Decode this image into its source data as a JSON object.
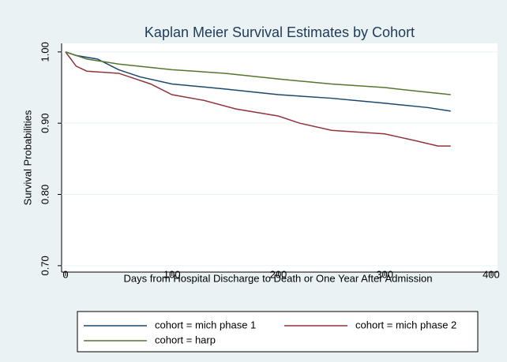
{
  "chart_data": {
    "type": "line",
    "title": "Kaplan Meier Survival Estimates by Cohort",
    "x_label": "Days from Hospital Discharge to Death or One Year After Admission",
    "y_label": "Survival Probabilities",
    "xlim": [
      -3.7,
      406
    ],
    "xticks": [
      0,
      100,
      200,
      300,
      400
    ],
    "ylim": [
      0.691,
      1.012
    ],
    "yticks": [
      {
        "value": 0.7,
        "label": "0.70"
      },
      {
        "value": 0.8,
        "label": "0.80"
      },
      {
        "value": 0.9,
        "label": "0.90"
      },
      {
        "value": 1,
        "label": "1.00"
      }
    ],
    "grid": true,
    "series": [
      {
        "name": "cohort = mich phase 1",
        "color": "#1a476f",
        "x": [
          0,
          10,
          30,
          50,
          70,
          100,
          150,
          200,
          250,
          300,
          340,
          362
        ],
        "values": [
          1.0,
          0.995,
          0.99,
          0.975,
          0.965,
          0.955,
          0.948,
          0.94,
          0.935,
          0.928,
          0.922,
          0.917
        ]
      },
      {
        "name": "cohort = mich phase 2",
        "color": "#90353b",
        "x": [
          0,
          5,
          10,
          20,
          50,
          60,
          80,
          100,
          130,
          160,
          200,
          220,
          250,
          300,
          330,
          350,
          362
        ],
        "values": [
          1.0,
          0.99,
          0.98,
          0.973,
          0.97,
          0.965,
          0.955,
          0.94,
          0.932,
          0.92,
          0.91,
          0.9,
          0.89,
          0.885,
          0.875,
          0.868,
          0.868
        ]
      },
      {
        "name": "cohort = harp",
        "color": "#55752f",
        "x": [
          0,
          20,
          50,
          100,
          150,
          200,
          250,
          300,
          330,
          362
        ],
        "values": [
          1.0,
          0.99,
          0.983,
          0.975,
          0.97,
          0.962,
          0.955,
          0.95,
          0.945,
          0.94
        ]
      }
    ]
  }
}
